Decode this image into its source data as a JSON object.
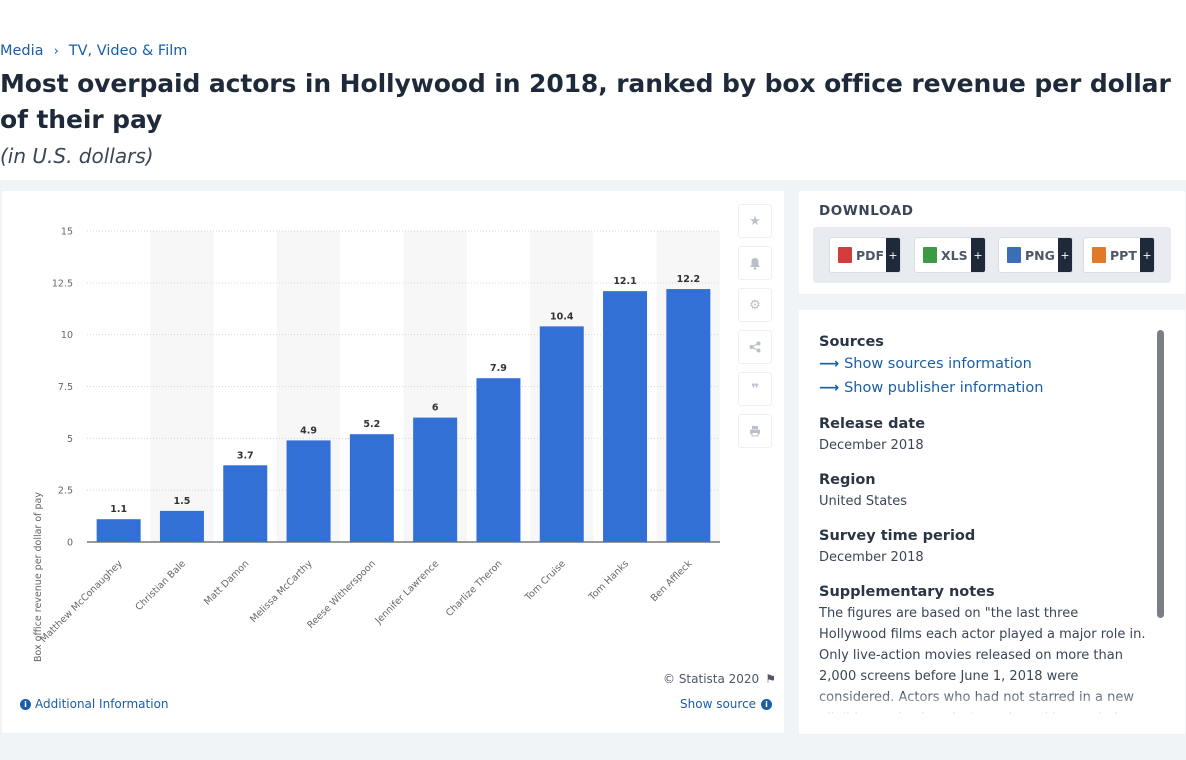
{
  "breadcrumb": {
    "items": [
      "Media",
      "TV, Video & Film"
    ]
  },
  "header": {
    "title": "Most overpaid actors in Hollywood in 2018, ranked by box office revenue per dollar of their pay",
    "subtitle": "(in U.S. dollars)"
  },
  "chart_data": {
    "type": "bar",
    "categories": [
      "Matthew McConaughey",
      "Christian Bale",
      "Matt Damon",
      "Melissa McCarthy",
      "Reese Witherspoon",
      "Jennifer Lawrence",
      "Charlize Theron",
      "Tom Cruise",
      "Tom Hanks",
      "Ben Affleck"
    ],
    "values": [
      1.1,
      1.5,
      3.7,
      4.9,
      5.2,
      6,
      7.9,
      10.4,
      12.1,
      12.2
    ],
    "value_labels": [
      "1.1",
      "1.5",
      "3.7",
      "4.9",
      "5.2",
      "6",
      "7.9",
      "10.4",
      "12.1",
      "12.2"
    ],
    "ylabel": "Box office revenue per dollar of pay",
    "xlabel": "",
    "ylim": [
      0,
      15
    ],
    "yticks": [
      0,
      2.5,
      5,
      7.5,
      10,
      12.5,
      15
    ],
    "ytick_labels": [
      "0",
      "2.5",
      "5",
      "7.5",
      "10",
      "12.5",
      "15"
    ],
    "grid": true,
    "bar_color": "#3370d6"
  },
  "chart_footer": {
    "copyright": "© Statista 2020",
    "additional_info": "Additional Information",
    "show_source": "Show source"
  },
  "tools": [
    "star-icon",
    "bell-icon",
    "gear-icon",
    "share-icon",
    "quote-icon",
    "print-icon"
  ],
  "download": {
    "title": "DOWNLOAD",
    "buttons": [
      {
        "label": "PDF",
        "color": "#d23c3c"
      },
      {
        "label": "XLS",
        "color": "#3c9a45"
      },
      {
        "label": "PNG",
        "color": "#3a6fb8"
      },
      {
        "label": "PPT",
        "color": "#e07a2a"
      }
    ],
    "plus": "+"
  },
  "info": {
    "sources_head": "Sources",
    "show_sources": "Show sources information",
    "show_publisher": "Show publisher information",
    "release_head": "Release date",
    "release_val": "December 2018",
    "region_head": "Region",
    "region_val": "United States",
    "survey_head": "Survey time period",
    "survey_val": "December 2018",
    "notes_head": "Supplementary notes",
    "notes_val": "The figures are based on \"the last three Hollywood films each actor played a major role in. Only live-action movies released on more than 2,000 screens before June 1, 2018 were considered. Actors who had not starred in a new eligible movie since last year's ranking period were ineligible. A limited"
  }
}
